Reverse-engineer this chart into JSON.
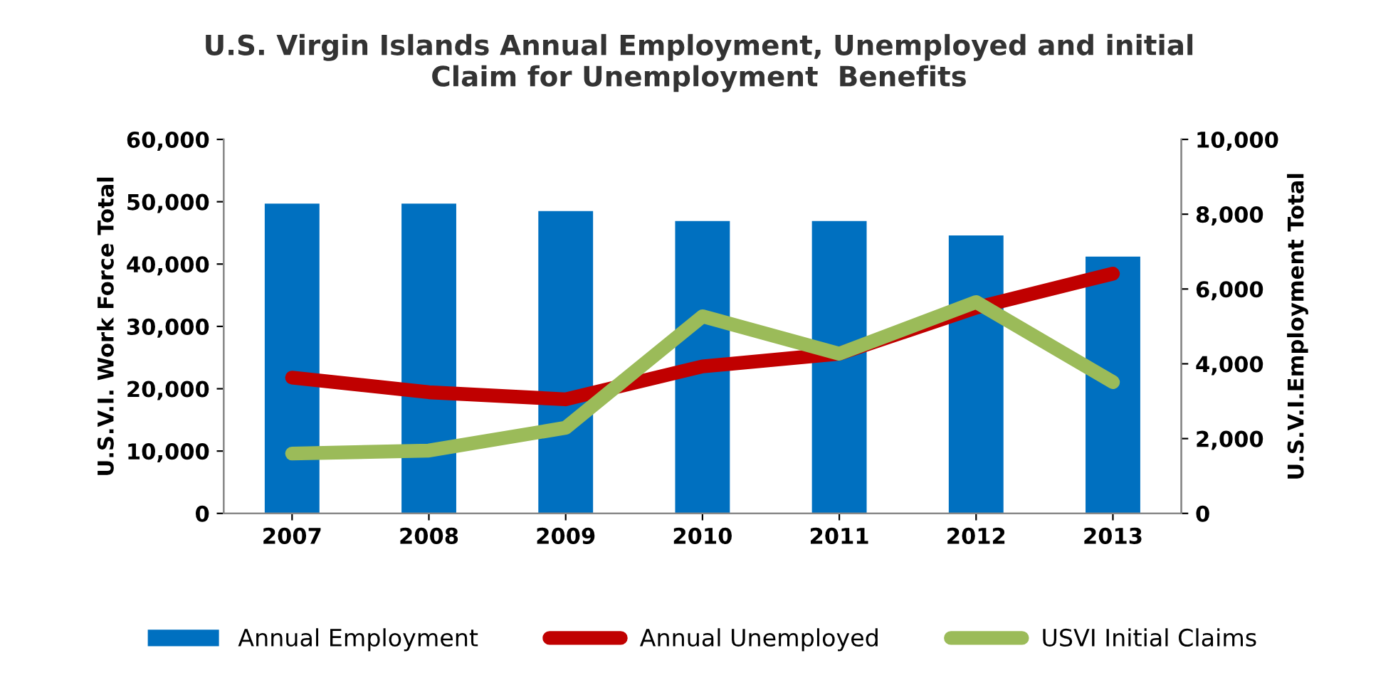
{
  "chart_data": {
    "type": "bar",
    "title": "U.S. Virgin Islands Annual Employment, Unemployed and initial\nClaim for Unemployment  Benefits",
    "ylabel": "U.S.V.I. Work Force Total",
    "y2label": "U.S.V.I.Employment Total",
    "categories": [
      "2007",
      "2008",
      "2009",
      "2010",
      "2011",
      "2012",
      "2013"
    ],
    "series": [
      {
        "name": "Annual Employment",
        "color": "#0070c0",
        "values": [
          49700,
          49700,
          48500,
          46900,
          46900,
          44600,
          41200
        ]
      },
      {
        "name": "Annual Unemployed",
        "type": "line",
        "axis": "y2",
        "color": "#c00000",
        "values": [
          3630,
          3240,
          3050,
          3930,
          4270,
          5500,
          6410
        ]
      },
      {
        "name": "USVI Initial Claims",
        "type": "line",
        "axis": "y2",
        "color": "#9bbb59",
        "values": [
          1600,
          1680,
          2290,
          5270,
          4270,
          5650,
          3510
        ]
      }
    ],
    "ylim": [
      0,
      60000
    ],
    "yticks": [
      {
        "value": 0,
        "label": "0"
      },
      {
        "value": 10000,
        "label": "10,000"
      },
      {
        "value": 20000,
        "label": "20,000"
      },
      {
        "value": 30000,
        "label": "30,000"
      },
      {
        "value": 40000,
        "label": "40,000"
      },
      {
        "value": 50000,
        "label": "50,000"
      },
      {
        "value": 60000,
        "label": "60,000"
      }
    ],
    "y2lim": [
      0,
      10000
    ],
    "y2ticks": [
      {
        "value": 0,
        "label": "0"
      },
      {
        "value": 2000,
        "label": "2,000"
      },
      {
        "value": 4000,
        "label": "4,000"
      },
      {
        "value": 6000,
        "label": "6,000"
      },
      {
        "value": 8000,
        "label": "8,000"
      },
      {
        "value": 10000,
        "label": "10,000"
      }
    ],
    "legend": "bottom",
    "grid": false
  }
}
